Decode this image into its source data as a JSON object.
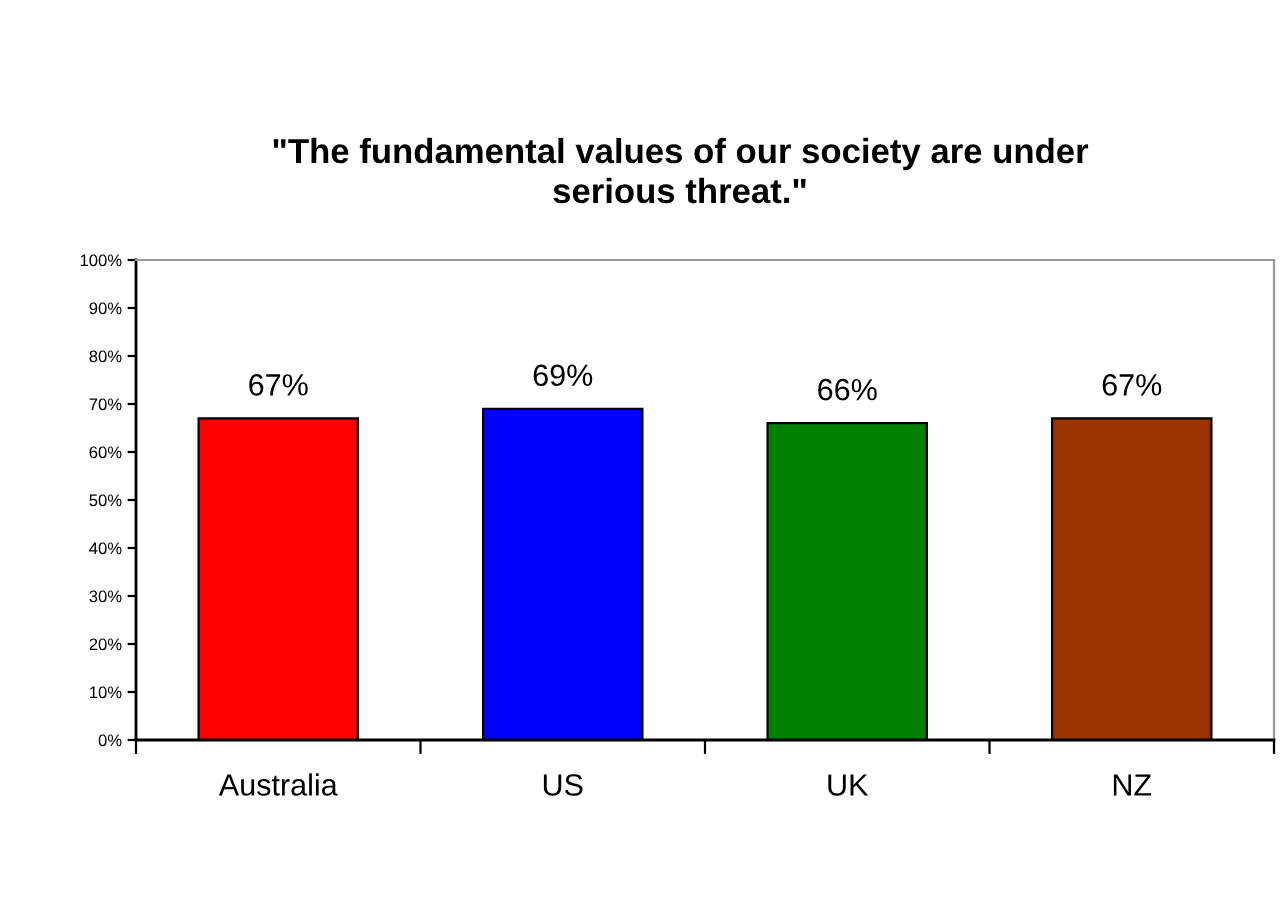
{
  "chart_data": {
    "type": "bar",
    "title": "\"The fundamental values of our society are under\nserious threat.\"",
    "categories": [
      "Australia",
      "US",
      "UK",
      "NZ"
    ],
    "values": [
      67,
      69,
      66,
      67
    ],
    "colors": [
      "#ff0000",
      "#0000ff",
      "#008000",
      "#993300"
    ],
    "value_labels": [
      "67%",
      "69%",
      "66%",
      "67%"
    ],
    "ylim": [
      0,
      100
    ],
    "yticks": [
      {
        "value": 0,
        "label": "0%"
      },
      {
        "value": 10,
        "label": "10%"
      },
      {
        "value": 20,
        "label": "20%"
      },
      {
        "value": 30,
        "label": "30%"
      },
      {
        "value": 40,
        "label": "40%"
      },
      {
        "value": 50,
        "label": "50%"
      },
      {
        "value": 60,
        "label": "60%"
      },
      {
        "value": 70,
        "label": "70%"
      },
      {
        "value": 80,
        "label": "80%"
      },
      {
        "value": 90,
        "label": "90%"
      },
      {
        "value": 100,
        "label": "100%"
      }
    ],
    "grid": false,
    "legend": false
  }
}
